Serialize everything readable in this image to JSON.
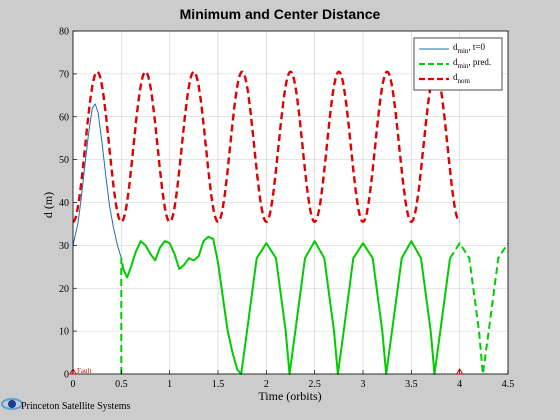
{
  "chart_data": {
    "type": "line",
    "title": "Minimum and Center Distance",
    "xlabel": "Time (orbits)",
    "ylabel": "d (m)",
    "xlim": [
      0,
      4.5
    ],
    "ylim": [
      0,
      80
    ],
    "xticks": [
      "0",
      "0.5",
      "1",
      "1.5",
      "2",
      "2.5",
      "3",
      "3.5",
      "4",
      "4.5"
    ],
    "yticks": [
      "0",
      "10",
      "20",
      "30",
      "40",
      "50",
      "60",
      "70",
      "80"
    ],
    "grid": true,
    "legend_position": "top-right",
    "series": [
      {
        "name": "d_min, t=0",
        "legend_main": "d",
        "legend_sub": "min",
        "legend_rest": ", t=0",
        "color": "#1f6fb5",
        "dash": "solid",
        "x": [
          0,
          0.02,
          0.05,
          0.08,
          0.12,
          0.16,
          0.2,
          0.23,
          0.26,
          0.3,
          0.34,
          0.38,
          0.42,
          0.46,
          0.5
        ],
        "y": [
          30,
          32,
          35,
          40,
          48,
          56,
          62,
          63,
          61,
          54,
          46,
          39,
          34,
          30,
          27
        ]
      },
      {
        "name": "d_min, pred.",
        "legend_main": "d",
        "legend_sub": "min",
        "legend_rest": ", pred.",
        "color": "#00cc00",
        "dash": "segments",
        "x": [
          0.5,
          0.5,
          0.52,
          0.56,
          0.6,
          0.65,
          0.7,
          0.75,
          0.8,
          0.85,
          0.9,
          0.95,
          1.0,
          1.05,
          1.1,
          1.15,
          1.2,
          1.25,
          1.3,
          1.35,
          1.4,
          1.45,
          1.5,
          1.55,
          1.6,
          1.65,
          1.7,
          1.74,
          1.8,
          1.9,
          2.0,
          2.1,
          2.2,
          2.24,
          2.3,
          2.4,
          2.5,
          2.6,
          2.7,
          2.74,
          2.8,
          2.9,
          3.0,
          3.1,
          3.2,
          3.24,
          3.3,
          3.4,
          3.5,
          3.6,
          3.7,
          3.74,
          3.8,
          3.9,
          4.0,
          4.1,
          4.2,
          4.24,
          4.3,
          4.4,
          4.5
        ],
        "y": [
          0,
          27,
          24.5,
          22.5,
          25,
          28.5,
          31,
          30,
          28,
          26.5,
          29.5,
          31,
          30.5,
          28,
          24.5,
          25.5,
          27,
          26.5,
          27.5,
          31,
          32,
          31.5,
          26,
          18,
          10,
          5,
          1,
          0,
          10,
          27,
          30.5,
          27,
          10,
          0,
          10,
          27,
          31,
          27,
          10,
          0,
          10,
          27,
          30.5,
          27,
          10,
          0,
          10,
          27,
          31,
          27,
          10,
          0,
          10,
          27,
          30.5,
          27,
          10,
          0,
          10,
          27,
          30.5
        ],
        "segments": [
          {
            "from": 0,
            "to": 2,
            "dash": "dashed"
          },
          {
            "from": 2,
            "to": 53,
            "dash": "solid"
          },
          {
            "from": 53,
            "to": 61,
            "dash": "dashed"
          }
        ]
      },
      {
        "name": "d_nom",
        "legend_main": "d",
        "legend_sub": "nom",
        "legend_rest": "",
        "color": "#e00000",
        "dash": "dashed",
        "function": "sine",
        "mean": 53,
        "amplitude": 17.5,
        "period": 0.5,
        "phase_peak": 0.25,
        "x_range": [
          0,
          4.0
        ]
      }
    ],
    "annotations": [
      {
        "text": "Fault",
        "x": 0,
        "y": 0,
        "marker": "triangle",
        "color": "#cc0000"
      },
      {
        "text": "",
        "x": 4.0,
        "y": 0,
        "marker": "triangle",
        "color": "#cc0000"
      }
    ]
  },
  "footer": {
    "brand": "Princeton Satellite Systems",
    "logo_colors": [
      "#1a3c8c",
      "#5aa0d8"
    ]
  }
}
